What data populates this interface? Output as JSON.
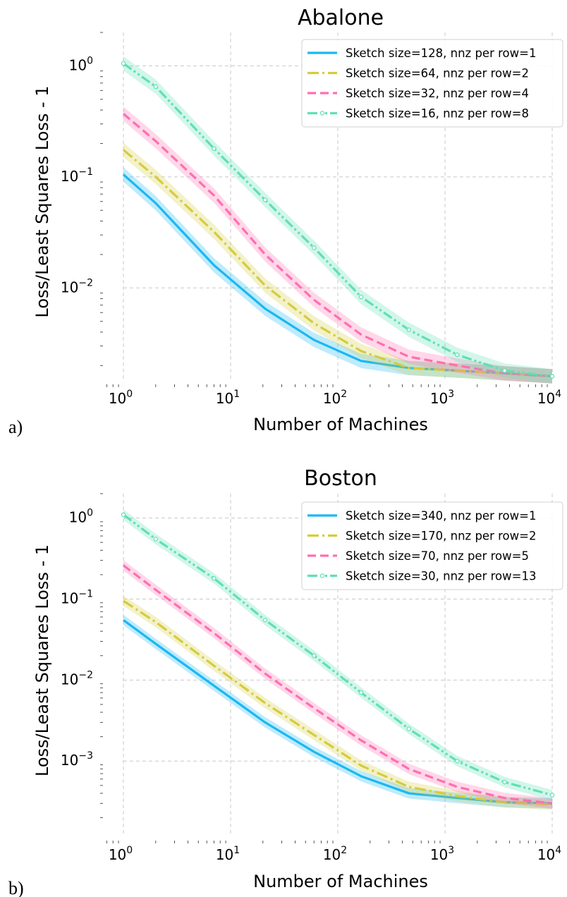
{
  "chart_data": [
    {
      "type": "line",
      "panel_label": "a)",
      "title": "Abalone",
      "xlabel": "Number of Machines",
      "ylabel": "Loss/Least Squares Loss - 1",
      "xscale": "log",
      "yscale": "log",
      "xlim": [
        1,
        10000
      ],
      "ylim": [
        0.0015,
        2.0
      ],
      "x_ticks": [
        {
          "base": "10",
          "exp": "0",
          "value": 1
        },
        {
          "base": "10",
          "exp": "1",
          "value": 10
        },
        {
          "base": "10",
          "exp": "2",
          "value": 100
        },
        {
          "base": "10",
          "exp": "3",
          "value": 1000
        },
        {
          "base": "10",
          "exp": "4",
          "value": 10000
        }
      ],
      "y_ticks": [
        {
          "base": "10",
          "exp": "0",
          "value": 1
        },
        {
          "base": "10",
          "exp": "−1",
          "value": 0.1
        },
        {
          "base": "10",
          "exp": "−2",
          "value": 0.01
        }
      ],
      "grid": true,
      "legend_position": "top-right",
      "x": [
        1,
        2,
        7,
        21,
        60,
        165,
        460,
        1300,
        3600,
        10000
      ],
      "series": [
        {
          "name": "Sketch size=128, nnz per row=1",
          "color": "#1ab8f2",
          "dash": "solid",
          "values": [
            0.105,
            0.058,
            0.016,
            0.0065,
            0.0034,
            0.0022,
            0.0019,
            0.0018,
            0.0017,
            0.0016
          ]
        },
        {
          "name": "Sketch size=64, nnz per row=2",
          "color": "#d4cc3d",
          "dash": "dashdot",
          "values": [
            0.175,
            0.1,
            0.032,
            0.0105,
            0.0048,
            0.0027,
            0.0019,
            0.0018,
            0.0017,
            0.0016
          ]
        },
        {
          "name": "Sketch size=32, nnz per row=4",
          "color": "#ff6eb0",
          "dash": "dashed",
          "values": [
            0.37,
            0.21,
            0.068,
            0.02,
            0.0078,
            0.0038,
            0.0024,
            0.002,
            0.0017,
            0.0016
          ]
        },
        {
          "name": "Sketch size=16, nnz per row=8",
          "color": "#5fe0b4",
          "dash": "dashdotdot",
          "values": [
            1.05,
            0.65,
            0.18,
            0.062,
            0.023,
            0.0083,
            0.0042,
            0.0025,
            0.0018,
            0.0016
          ]
        }
      ]
    },
    {
      "type": "line",
      "panel_label": "b)",
      "title": "Boston",
      "xlabel": "Number of Machines",
      "ylabel": "Loss/Least Squares Loss - 1",
      "xscale": "log",
      "yscale": "log",
      "xlim": [
        1,
        10000
      ],
      "ylim": [
        0.00012,
        2.0
      ],
      "x_ticks": [
        {
          "base": "10",
          "exp": "0",
          "value": 1
        },
        {
          "base": "10",
          "exp": "1",
          "value": 10
        },
        {
          "base": "10",
          "exp": "2",
          "value": 100
        },
        {
          "base": "10",
          "exp": "3",
          "value": 1000
        },
        {
          "base": "10",
          "exp": "4",
          "value": 10000
        }
      ],
      "y_ticks": [
        {
          "base": "10",
          "exp": "0",
          "value": 1
        },
        {
          "base": "10",
          "exp": "−1",
          "value": 0.1
        },
        {
          "base": "10",
          "exp": "−2",
          "value": 0.01
        },
        {
          "base": "10",
          "exp": "−3",
          "value": 0.001
        }
      ],
      "grid": true,
      "legend_position": "top-right",
      "x": [
        1,
        2,
        7,
        21,
        60,
        165,
        460,
        1300,
        3600,
        10000
      ],
      "series": [
        {
          "name": "Sketch size=340, nnz per row=1",
          "color": "#1ab8f2",
          "dash": "solid",
          "values": [
            0.055,
            0.028,
            0.0085,
            0.003,
            0.0013,
            0.00065,
            0.0004,
            0.00035,
            0.00031,
            0.0003
          ]
        },
        {
          "name": "Sketch size=170, nnz per row=2",
          "color": "#d4cc3d",
          "dash": "dashdot",
          "values": [
            0.095,
            0.052,
            0.015,
            0.0052,
            0.0021,
            0.00088,
            0.00048,
            0.00037,
            0.00031,
            0.00029
          ]
        },
        {
          "name": "Sketch size=70, nnz per row=5",
          "color": "#ff6eb0",
          "dash": "dashed",
          "values": [
            0.26,
            0.13,
            0.038,
            0.012,
            0.0045,
            0.0018,
            0.0008,
            0.00048,
            0.00035,
            0.0003
          ]
        },
        {
          "name": "Sketch size=30, nnz per row=13",
          "color": "#5fe0b4",
          "dash": "dashdotdot",
          "values": [
            1.1,
            0.55,
            0.18,
            0.055,
            0.02,
            0.007,
            0.0025,
            0.001,
            0.00055,
            0.00038
          ]
        }
      ]
    }
  ]
}
